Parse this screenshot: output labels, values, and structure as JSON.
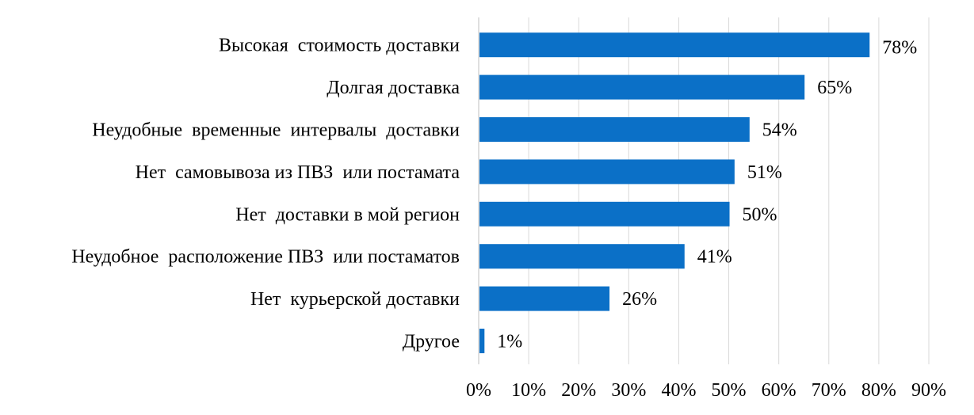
{
  "chart_data": {
    "type": "bar",
    "orientation": "horizontal",
    "categories": [
      "Высокая  стоимость доставки",
      "Долгая доставка",
      "Неудобные  временные  интервалы  доставки",
      "Нет  самовывоза из ПВЗ  или постамата",
      "Нет  доставки в мой регион",
      "Неудобное  расположение ПВЗ  или постаматов",
      "Нет  курьерской доставки",
      "Другое"
    ],
    "values": [
      78,
      65,
      54,
      51,
      50,
      41,
      26,
      1
    ],
    "value_labels": [
      "78%",
      "65%",
      "54%",
      "51%",
      "50%",
      "41%",
      "26%",
      "1%"
    ],
    "x_ticks": [
      "0%",
      "10%",
      "20%",
      "30%",
      "40%",
      "50%",
      "60%",
      "70%",
      "80%",
      "90%"
    ],
    "xlim": [
      0,
      90
    ],
    "grid": true,
    "bar_color": "#0b70c7",
    "title": "",
    "xlabel": "",
    "ylabel": ""
  }
}
